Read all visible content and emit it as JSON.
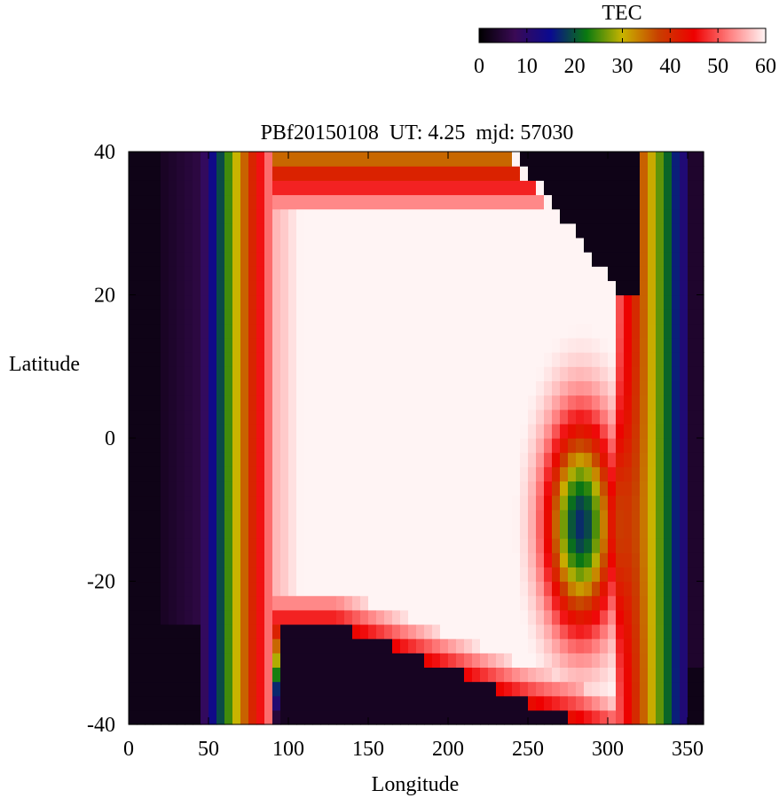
{
  "chart_data": {
    "type": "heatmap",
    "title": "PBf20150108  UT: 4.25  mjd: 57030",
    "xlabel": "Longitude",
    "ylabel": "Latitude",
    "xlim": [
      0,
      360
    ],
    "ylim": [
      -40,
      40
    ],
    "x_ticks": [
      "0",
      "50",
      "100",
      "150",
      "200",
      "250",
      "300",
      "350"
    ],
    "y_ticks": [
      "40",
      "20",
      "0",
      "-20",
      "-40"
    ],
    "grid": false,
    "colorbar": {
      "label": "TEC",
      "range": [
        0,
        60
      ],
      "ticks": [
        "0",
        "10",
        "20",
        "30",
        "40",
        "50",
        "60"
      ],
      "colormap": [
        "#000000",
        "#3a0a55",
        "#0a0a90",
        "#0a7a10",
        "#c8b400",
        "#c84000",
        "#ee0000",
        "#ff8080",
        "#fff4f4"
      ]
    },
    "grid_resolution": {
      "lon_step_deg": 5,
      "lat_step_deg": 2
    },
    "features": [
      {
        "description": "daytime crest, TEC ~60",
        "lon_range": [
          90,
          310
        ],
        "lat_range": [
          -34,
          34
        ]
      },
      {
        "description": "depleted region, TEC ~18",
        "lon_range": [
          255,
          305
        ],
        "lat_range": [
          -25,
          2
        ]
      },
      {
        "description": "dawn gradient",
        "lon_range": [
          50,
          90
        ],
        "tec_range": [
          10,
          50
        ]
      },
      {
        "description": "dusk gradient",
        "lon_range": [
          305,
          350
        ],
        "tec_range": [
          45,
          12
        ]
      }
    ]
  }
}
